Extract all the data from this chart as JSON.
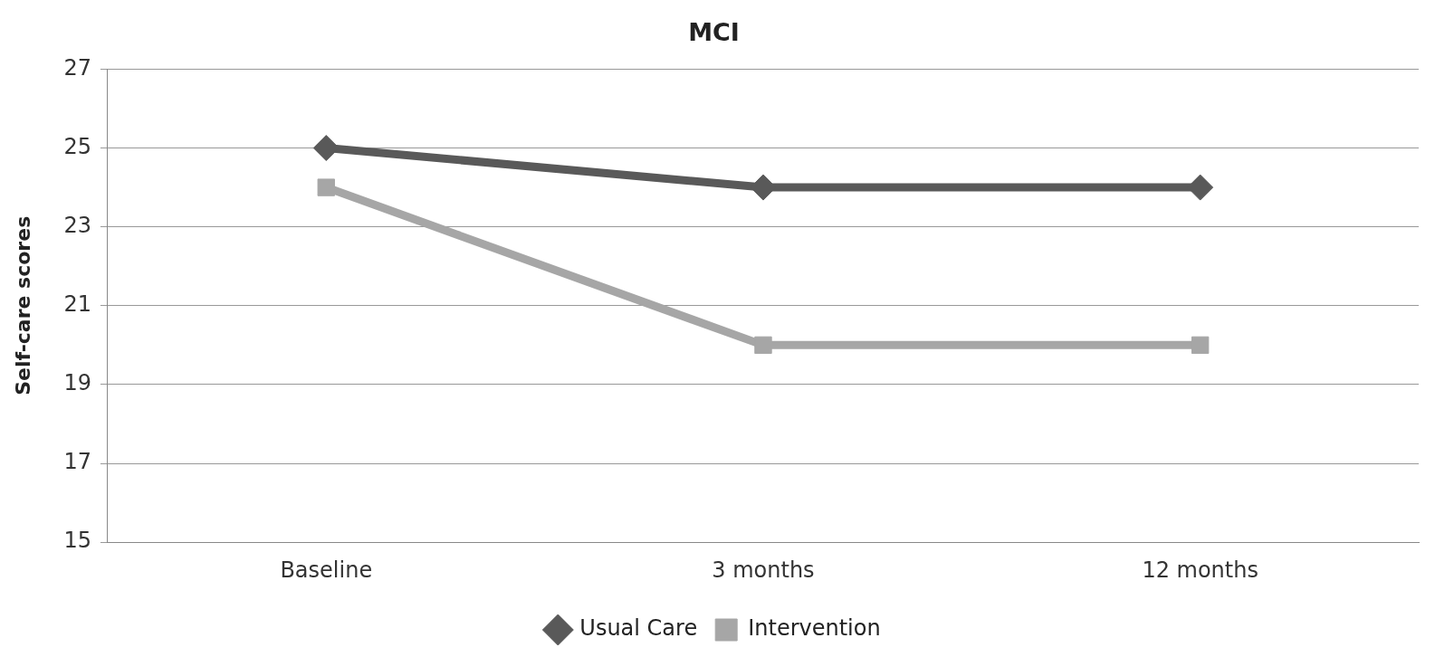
{
  "chart_data": {
    "type": "line",
    "title": "MCI",
    "ylabel": "Self-care scores",
    "categories": [
      "Baseline",
      "3 months",
      "12 months"
    ],
    "series": [
      {
        "name": "Usual Care",
        "color": "#595959",
        "values": [
          25,
          24,
          24
        ],
        "marker": "diamond"
      },
      {
        "name": "Intervention",
        "color": "#a6a6a6",
        "values": [
          24,
          20,
          20
        ],
        "marker": "square"
      }
    ],
    "ylim": [
      15,
      27
    ],
    "yticks": [
      15,
      17,
      19,
      21,
      23,
      25,
      27
    ],
    "grid": "y",
    "legend": "bottom",
    "line_style": "solid"
  }
}
